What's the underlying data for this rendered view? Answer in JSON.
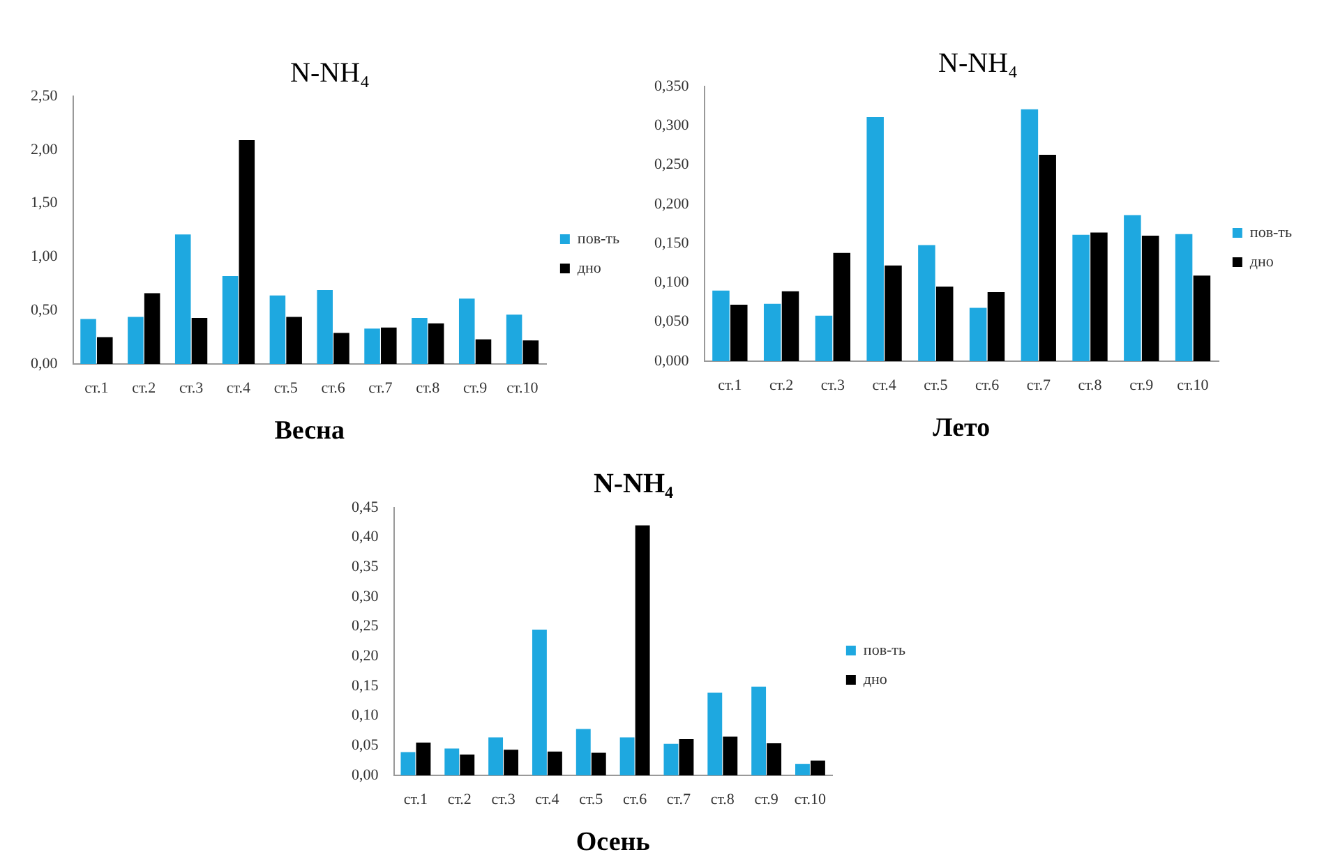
{
  "chart_data": [
    {
      "type": "bar",
      "title": "N-NH₄",
      "xlabel": "Весна",
      "categories": [
        "ст.1",
        "ст.2",
        "ст.3",
        "ст.4",
        "ст.5",
        "ст.6",
        "ст.7",
        "ст.8",
        "ст.9",
        "ст.10"
      ],
      "series": [
        {
          "name": "пов-ть",
          "color": "#1ea8e0",
          "values": [
            0.42,
            0.44,
            1.21,
            0.82,
            0.64,
            0.69,
            0.33,
            0.43,
            0.61,
            0.46
          ]
        },
        {
          "name": "дно",
          "color": "#000000",
          "values": [
            0.25,
            0.66,
            0.43,
            2.09,
            0.44,
            0.29,
            0.34,
            0.38,
            0.23,
            0.22
          ]
        }
      ],
      "ylim": [
        0,
        2.5
      ],
      "yticks": [
        {
          "value": 0,
          "label": "0,00"
        },
        {
          "value": 0.5,
          "label": "0,50"
        },
        {
          "value": 1,
          "label": "1,00"
        },
        {
          "value": 1.5,
          "label": "1,50"
        },
        {
          "value": 2,
          "label": "2,00"
        },
        {
          "value": 2.5,
          "label": "2,50"
        }
      ],
      "grid": false,
      "legend": "right"
    },
    {
      "type": "bar",
      "title": "N-NH₄",
      "xlabel": "Лето",
      "categories": [
        "ст.1",
        "ст.2",
        "ст.3",
        "ст.4",
        "ст.5",
        "ст.6",
        "ст.7",
        "ст.8",
        "ст.9",
        "ст.10"
      ],
      "series": [
        {
          "name": "пов-ть",
          "color": "#1ea8e0",
          "values": [
            0.09,
            0.073,
            0.058,
            0.311,
            0.148,
            0.068,
            0.321,
            0.161,
            0.186,
            0.162
          ]
        },
        {
          "name": "дно",
          "color": "#000000",
          "values": [
            0.072,
            0.089,
            0.138,
            0.122,
            0.095,
            0.088,
            0.263,
            0.164,
            0.16,
            0.109
          ]
        }
      ],
      "ylim": [
        0,
        0.35
      ],
      "yticks": [
        {
          "value": 0,
          "label": "0,000"
        },
        {
          "value": 0.05,
          "label": "0,050"
        },
        {
          "value": 0.1,
          "label": "0,100"
        },
        {
          "value": 0.15,
          "label": "0,150"
        },
        {
          "value": 0.2,
          "label": "0,200"
        },
        {
          "value": 0.25,
          "label": "0,250"
        },
        {
          "value": 0.3,
          "label": "0,300"
        },
        {
          "value": 0.35,
          "label": "0,350"
        }
      ],
      "grid": false,
      "legend": "right"
    },
    {
      "type": "bar",
      "title": "N-NH₄",
      "xlabel": "Осень",
      "categories": [
        "ст.1",
        "ст.2",
        "ст.3",
        "ст.4",
        "ст.5",
        "ст.6",
        "ст.7",
        "ст.8",
        "ст.9",
        "ст.10"
      ],
      "series": [
        {
          "name": "пов-ть",
          "color": "#1ea8e0",
          "values": [
            0.039,
            0.045,
            0.064,
            0.245,
            0.078,
            0.064,
            0.053,
            0.139,
            0.149,
            0.019
          ]
        },
        {
          "name": "дно",
          "color": "#000000",
          "values": [
            0.055,
            0.035,
            0.043,
            0.04,
            0.038,
            0.42,
            0.061,
            0.065,
            0.054,
            0.025
          ]
        }
      ],
      "ylim": [
        0,
        0.45
      ],
      "yticks": [
        {
          "value": 0,
          "label": "0,00"
        },
        {
          "value": 0.05,
          "label": "0,05"
        },
        {
          "value": 0.1,
          "label": "0,10"
        },
        {
          "value": 0.15,
          "label": "0,15"
        },
        {
          "value": 0.2,
          "label": "0,20"
        },
        {
          "value": 0.25,
          "label": "0,25"
        },
        {
          "value": 0.3,
          "label": "0,30"
        },
        {
          "value": 0.35,
          "label": "0,35"
        },
        {
          "value": 0.4,
          "label": "0,40"
        },
        {
          "value": 0.45,
          "label": "0,45"
        }
      ],
      "grid": false,
      "legend": "right"
    }
  ]
}
